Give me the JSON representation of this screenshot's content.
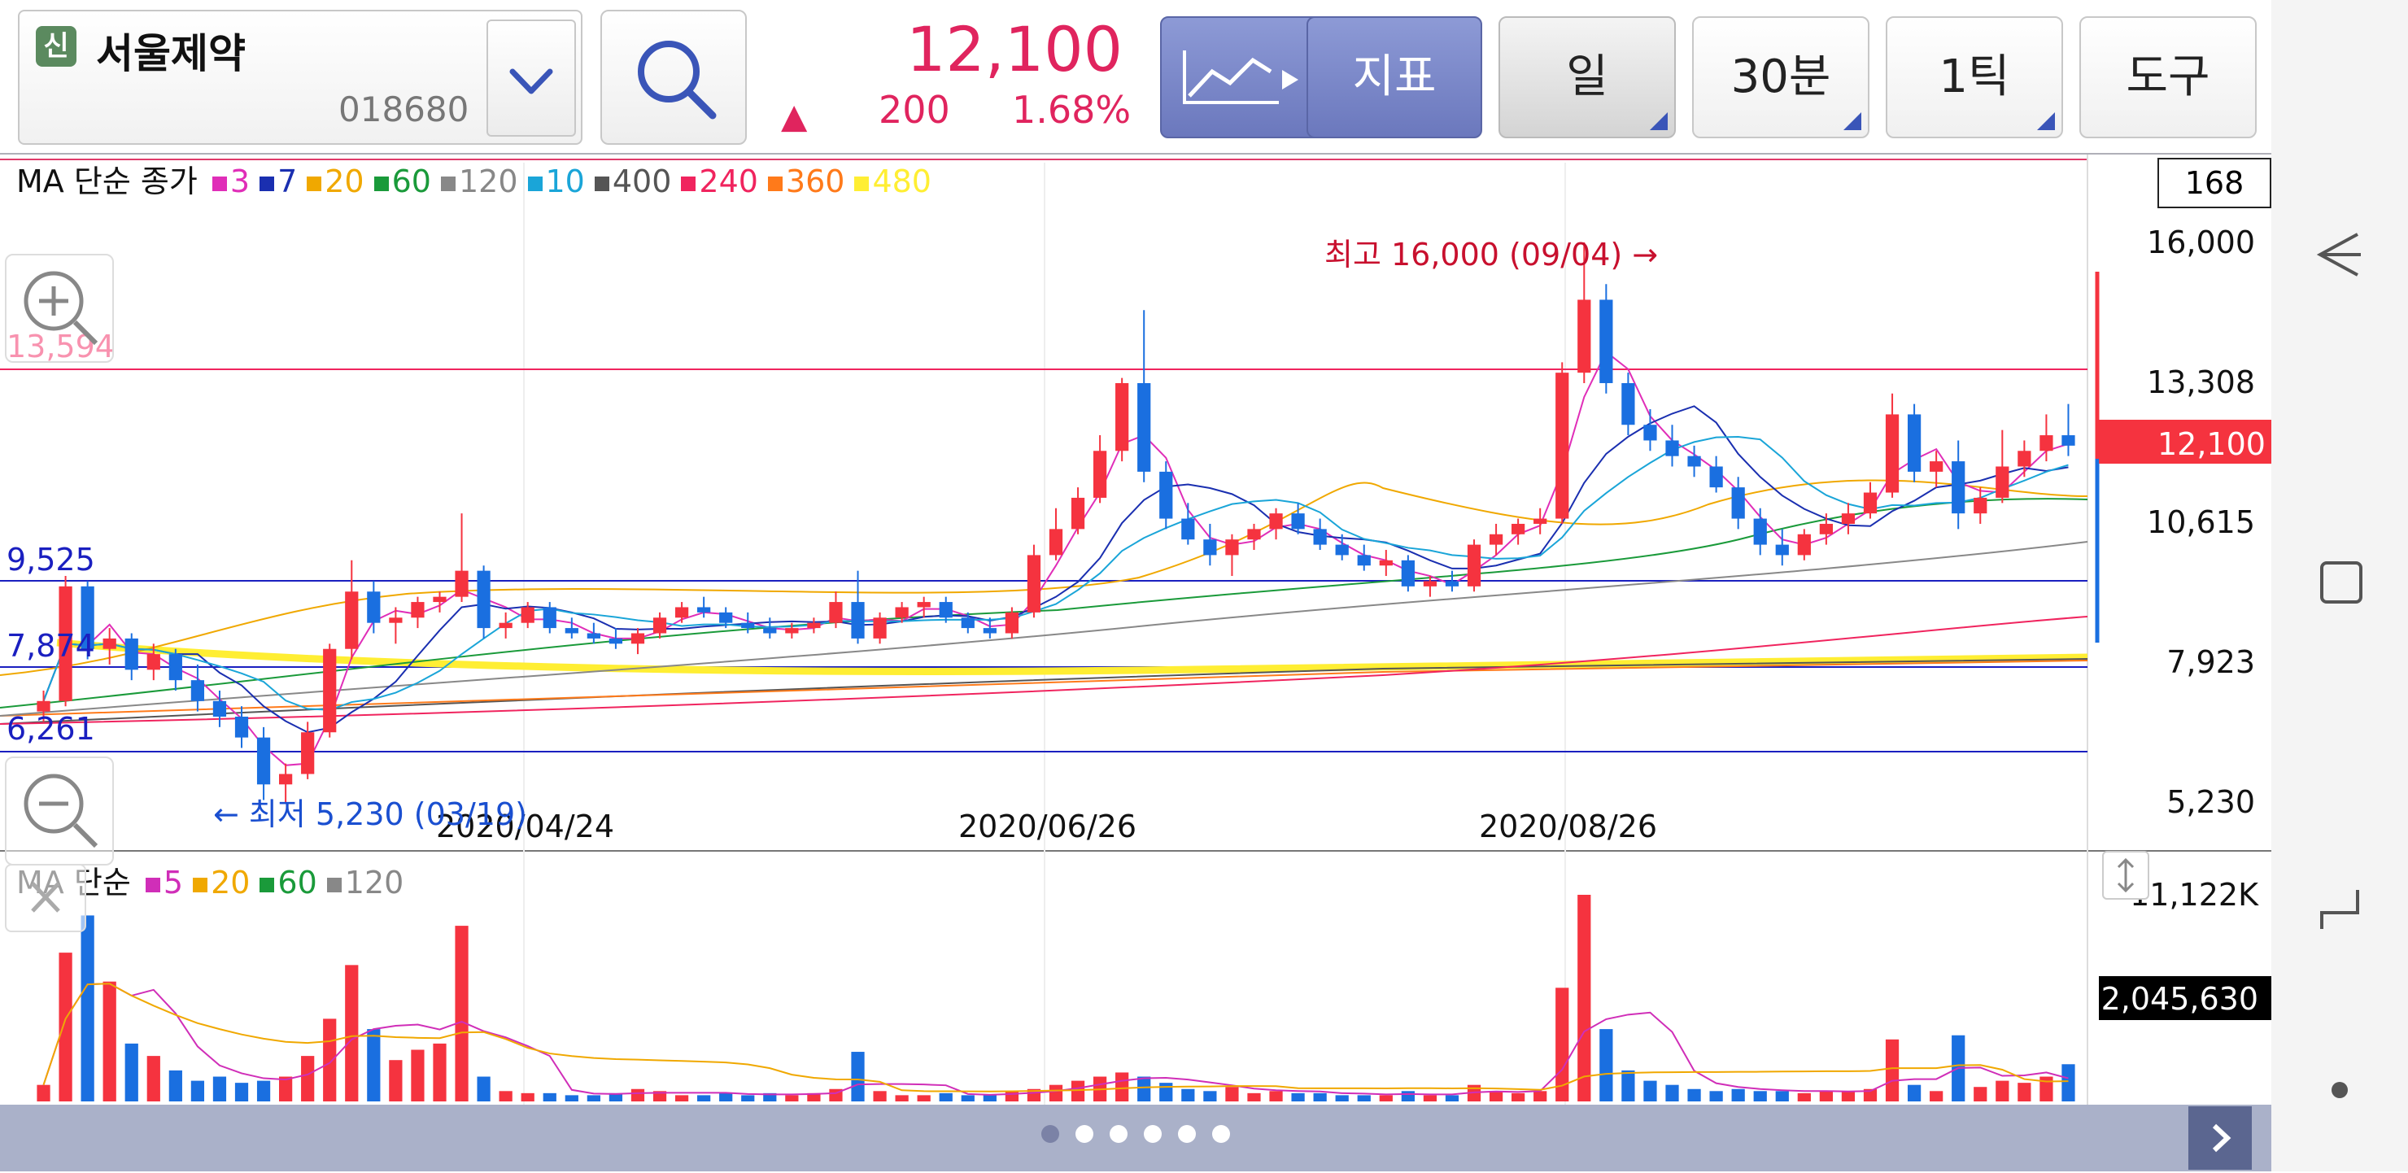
{
  "stock": {
    "badge": "신",
    "name": "서울제약",
    "code": "018680"
  },
  "quote": {
    "price": "12,100",
    "arrow": "▲",
    "change": "200",
    "percent": "1.68%"
  },
  "toolbar": {
    "indicator": "지표",
    "period": "일",
    "minute": "30분",
    "tick": "1틱",
    "tools": "도구"
  },
  "legend_main": {
    "title": "MA 단순 종가",
    "items": [
      {
        "label": "3",
        "color": "#e02eb8"
      },
      {
        "label": "7",
        "color": "#1a2fb0"
      },
      {
        "label": "20",
        "color": "#f0a800"
      },
      {
        "label": "60",
        "color": "#1a9a3a"
      },
      {
        "label": "120",
        "color": "#888888"
      },
      {
        "label": "10",
        "color": "#1aa5d8"
      },
      {
        "label": "400",
        "color": "#555555"
      },
      {
        "label": "240",
        "color": "#f0245e"
      },
      {
        "label": "360",
        "color": "#ff7a1a"
      },
      {
        "label": "480",
        "color": "#ffee33"
      }
    ]
  },
  "legend_volume": {
    "title": "MA 단순",
    "items": [
      {
        "label": "5",
        "color": "#d02eb8"
      },
      {
        "label": "20",
        "color": "#f0a800"
      },
      {
        "label": "60",
        "color": "#1a9a3a"
      },
      {
        "label": "120",
        "color": "#888888"
      }
    ]
  },
  "y_axis": {
    "box": "168",
    "labels": [
      "16,000",
      "13,308",
      "10,615",
      "7,923",
      "5,230"
    ],
    "current": "12,100"
  },
  "volume_axis": {
    "top": "11,122K",
    "current": "2,045,630"
  },
  "x_axis": [
    "2020/04/24",
    "2020/06/26",
    "2020/08/26"
  ],
  "lines": {
    "red": "13,594",
    "blue_top": "9,525",
    "blue_mid": "7,874",
    "blue_low": "6,261"
  },
  "annotations": {
    "high": "최고 16,000 (09/04) →",
    "low": "← 최저 5,230 (03/19)"
  },
  "colors": {
    "up": "#f5333f",
    "down": "#1a6fe0",
    "price": "#e0245e"
  },
  "chart_data": {
    "type": "candlestick",
    "ylim": [
      5230,
      16000
    ],
    "y_ticks": [
      16000,
      13308,
      10615,
      7923,
      5230
    ],
    "x_ticks": [
      "2020/04/24",
      "2020/06/26",
      "2020/08/26"
    ],
    "high": {
      "value": 16000,
      "date": "09/04"
    },
    "low": {
      "value": 5230,
      "date": "03/19"
    },
    "last": 12100,
    "volume_last": 2045630,
    "volume_max_label": "11,122K",
    "candles": [
      [
        7000,
        7400,
        6800,
        7200
      ],
      [
        7200,
        9600,
        7100,
        9400
      ],
      [
        9400,
        9500,
        8000,
        8200
      ],
      [
        8200,
        8600,
        7900,
        8400
      ],
      [
        8400,
        8500,
        7600,
        7800
      ],
      [
        7800,
        8300,
        7600,
        8100
      ],
      [
        8100,
        8200,
        7400,
        7600
      ],
      [
        7600,
        7900,
        7000,
        7200
      ],
      [
        7200,
        7400,
        6700,
        6900
      ],
      [
        6900,
        7100,
        6300,
        6500
      ],
      [
        6500,
        6700,
        5300,
        5600
      ],
      [
        5600,
        6000,
        5230,
        5800
      ],
      [
        5800,
        6800,
        5700,
        6600
      ],
      [
        6600,
        8300,
        6500,
        8200
      ],
      [
        8200,
        9900,
        8000,
        9300
      ],
      [
        9300,
        9500,
        8500,
        8700
      ],
      [
        8700,
        9000,
        8300,
        8800
      ],
      [
        8800,
        9200,
        8600,
        9100
      ],
      [
        9100,
        9300,
        8900,
        9200
      ],
      [
        9200,
        10800,
        9100,
        9700
      ],
      [
        9700,
        9800,
        8400,
        8600
      ],
      [
        8600,
        8900,
        8400,
        8700
      ],
      [
        8700,
        9100,
        8600,
        9000
      ],
      [
        9000,
        9100,
        8500,
        8600
      ],
      [
        8600,
        8800,
        8400,
        8500
      ],
      [
        8500,
        8700,
        8300,
        8400
      ],
      [
        8400,
        8600,
        8200,
        8300
      ],
      [
        8300,
        8600,
        8100,
        8500
      ],
      [
        8500,
        8900,
        8400,
        8800
      ],
      [
        8800,
        9100,
        8700,
        9000
      ],
      [
        9000,
        9200,
        8800,
        8900
      ],
      [
        8900,
        9000,
        8600,
        8700
      ],
      [
        8700,
        8900,
        8500,
        8600
      ],
      [
        8600,
        8800,
        8400,
        8500
      ],
      [
        8500,
        8700,
        8400,
        8600
      ],
      [
        8600,
        8800,
        8500,
        8700
      ],
      [
        8700,
        9300,
        8600,
        9100
      ],
      [
        9100,
        9700,
        8300,
        8400
      ],
      [
        8400,
        8900,
        8300,
        8800
      ],
      [
        8800,
        9100,
        8700,
        9000
      ],
      [
        9000,
        9200,
        8800,
        9100
      ],
      [
        9100,
        9200,
        8700,
        8800
      ],
      [
        8800,
        8900,
        8500,
        8600
      ],
      [
        8600,
        8800,
        8400,
        8500
      ],
      [
        8500,
        9000,
        8400,
        8900
      ],
      [
        8900,
        10200,
        8800,
        10000
      ],
      [
        10000,
        10900,
        9900,
        10500
      ],
      [
        10500,
        11300,
        10400,
        11100
      ],
      [
        11100,
        12300,
        11000,
        12000
      ],
      [
        12000,
        13400,
        11800,
        13300
      ],
      [
        13300,
        14700,
        11400,
        11600
      ],
      [
        11600,
        11800,
        10500,
        10700
      ],
      [
        10700,
        11000,
        10200,
        10300
      ],
      [
        10300,
        10600,
        9800,
        10000
      ],
      [
        10000,
        10400,
        9600,
        10300
      ],
      [
        10300,
        10600,
        10100,
        10500
      ],
      [
        10500,
        10900,
        10300,
        10800
      ],
      [
        10800,
        11000,
        10400,
        10500
      ],
      [
        10500,
        10700,
        10100,
        10200
      ],
      [
        10200,
        10400,
        9900,
        10000
      ],
      [
        10000,
        10200,
        9700,
        9800
      ],
      [
        9800,
        10100,
        9600,
        9900
      ],
      [
        9900,
        10000,
        9300,
        9400
      ],
      [
        9400,
        9600,
        9200,
        9500
      ],
      [
        9500,
        9700,
        9300,
        9400
      ],
      [
        9400,
        10300,
        9300,
        10200
      ],
      [
        10200,
        10600,
        10000,
        10400
      ],
      [
        10400,
        10700,
        10200,
        10600
      ],
      [
        10600,
        10900,
        10400,
        10700
      ],
      [
        10700,
        13700,
        10600,
        13500
      ],
      [
        13500,
        16000,
        13300,
        14900
      ],
      [
        14900,
        15200,
        13100,
        13300
      ],
      [
        13300,
        13500,
        12300,
        12500
      ],
      [
        12500,
        12800,
        12000,
        12200
      ],
      [
        12200,
        12500,
        11700,
        11900
      ],
      [
        11900,
        12100,
        11500,
        11700
      ],
      [
        11700,
        11900,
        11200,
        11300
      ],
      [
        11300,
        11500,
        10500,
        10700
      ],
      [
        10700,
        10900,
        10000,
        10200
      ],
      [
        10200,
        10500,
        9800,
        10000
      ],
      [
        10000,
        10500,
        9900,
        10400
      ],
      [
        10400,
        10800,
        10200,
        10600
      ],
      [
        10600,
        11000,
        10400,
        10800
      ],
      [
        10800,
        11400,
        10700,
        11200
      ],
      [
        11200,
        13100,
        11100,
        12700
      ],
      [
        12700,
        12900,
        11400,
        11600
      ],
      [
        11600,
        12000,
        11300,
        11800
      ],
      [
        11800,
        12200,
        10500,
        10800
      ],
      [
        10800,
        11300,
        10600,
        11100
      ],
      [
        11100,
        12400,
        11000,
        11700
      ],
      [
        11700,
        12200,
        11500,
        12000
      ],
      [
        12000,
        12700,
        11800,
        12300
      ],
      [
        12300,
        12900,
        11900,
        12100
      ]
    ],
    "volume": [
      0.08,
      0.72,
      0.9,
      0.58,
      0.28,
      0.22,
      0.15,
      0.1,
      0.12,
      0.09,
      0.1,
      0.12,
      0.22,
      0.4,
      0.66,
      0.35,
      0.2,
      0.25,
      0.28,
      0.85,
      0.12,
      0.05,
      0.04,
      0.04,
      0.03,
      0.03,
      0.04,
      0.06,
      0.05,
      0.03,
      0.03,
      0.04,
      0.03,
      0.04,
      0.03,
      0.04,
      0.06,
      0.24,
      0.05,
      0.03,
      0.03,
      0.04,
      0.03,
      0.03,
      0.05,
      0.06,
      0.08,
      0.1,
      0.12,
      0.14,
      0.12,
      0.09,
      0.06,
      0.05,
      0.07,
      0.04,
      0.05,
      0.04,
      0.04,
      0.03,
      0.03,
      0.03,
      0.05,
      0.03,
      0.03,
      0.08,
      0.05,
      0.04,
      0.05,
      0.55,
      1.0,
      0.35,
      0.15,
      0.1,
      0.08,
      0.06,
      0.05,
      0.06,
      0.05,
      0.05,
      0.04,
      0.05,
      0.05,
      0.06,
      0.3,
      0.08,
      0.05,
      0.32,
      0.07,
      0.1,
      0.09,
      0.12,
      0.18
    ]
  }
}
